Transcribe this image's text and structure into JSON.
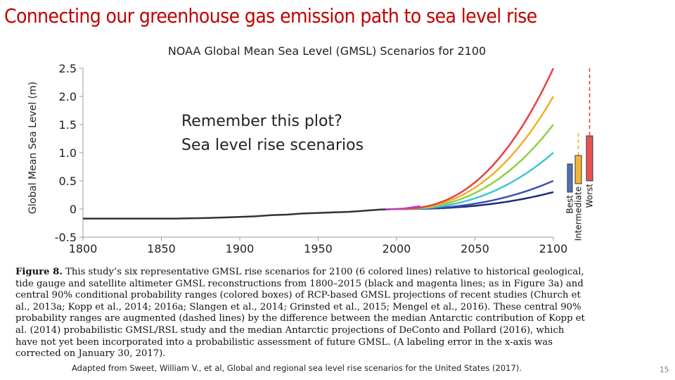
{
  "slide": {
    "title": "Connecting our greenhouse gas emission path to sea level rise",
    "callout_line1": "Remember this plot?",
    "callout_line2": "Sea level rise scenarios",
    "caption_bold": "Figure 8.",
    "caption_rest": " This study’s six representative GMSL rise scenarios for 2100 (6 colored lines) relative to historical geological, tide gauge and satellite altimeter GMSL reconstructions from 1800–2015 (black and magenta lines; as in Figure 3a) and central 90% conditional probability ranges (colored boxes) of RCP-based GMSL projections of recent studies (Church et al., 2013a; Kopp et al., 2014; 2016a; Slangen et al., 2014; Grinsted et al., 2015; Mengel et al., 2016). These central 90% probability ranges are augmented (dashed lines) by the difference between the median Antarctic contribution of Kopp et al. (2014) probabilistic GMSL/RSL study and the median Antarctic projections of DeConto and Pollard (2016), which have not yet been incorporated into a probabilistic assessment of future GMSL. (A labeling error in the x-axis was corrected on January 30, 2017).",
    "credit": "Adapted from Sweet, William V., et al, Global and regional sea level rise scenarios for the United States (2017).",
    "page_number": "15"
  },
  "chart_data": {
    "type": "line",
    "title": "NOAA Global Mean Sea Level (GMSL) Scenarios for 2100",
    "xlabel": "",
    "ylabel": "Global Mean Sea Level (m)",
    "xlim": [
      1800,
      2100
    ],
    "ylim": [
      -0.5,
      2.5
    ],
    "x_ticks": [
      "1800",
      "1850",
      "1900",
      "1950",
      "2000",
      "2050",
      "2100"
    ],
    "y_ticks": [
      "-0.5",
      "0",
      "0.5",
      "1.0",
      "1.5",
      "2.0",
      "2.5"
    ],
    "grid": false,
    "history": {
      "color": "#333333",
      "x": [
        1800,
        1820,
        1840,
        1860,
        1880,
        1900,
        1910,
        1920,
        1930,
        1940,
        1950,
        1960,
        1970,
        1980,
        1990,
        2000
      ],
      "y": [
        -0.17,
        -0.17,
        -0.17,
        -0.17,
        -0.16,
        -0.14,
        -0.13,
        -0.11,
        -0.1,
        -0.08,
        -0.07,
        -0.06,
        -0.05,
        -0.03,
        -0.01,
        0.0
      ]
    },
    "satellite": {
      "color": "#c040c0",
      "x": [
        1993,
        2000,
        2005,
        2010,
        2015
      ],
      "y": [
        -0.01,
        0.0,
        0.01,
        0.03,
        0.05
      ]
    },
    "series": [
      {
        "color": "#1f2a7a",
        "values_2100": 0.3
      },
      {
        "color": "#3b4fb8",
        "values_2100": 0.5
      },
      {
        "color": "#3fc6d6",
        "values_2100": 1.0
      },
      {
        "color": "#8fcf4a",
        "values_2100": 1.5
      },
      {
        "color": "#f0b020",
        "values_2100": 2.0
      },
      {
        "color": "#e84040",
        "values_2100": 2.5
      }
    ],
    "boxes": [
      {
        "label": "Best",
        "color": "#3a64b0",
        "low": 0.3,
        "high": 0.8,
        "dash_top": 0.8
      },
      {
        "label": "Intermediate",
        "color": "#f0b020",
        "low": 0.45,
        "high": 0.95,
        "dash_top": 1.35
      },
      {
        "label": "Worst",
        "color": "#e84040",
        "low": 0.5,
        "high": 1.3,
        "dash_top": 2.5
      }
    ]
  }
}
